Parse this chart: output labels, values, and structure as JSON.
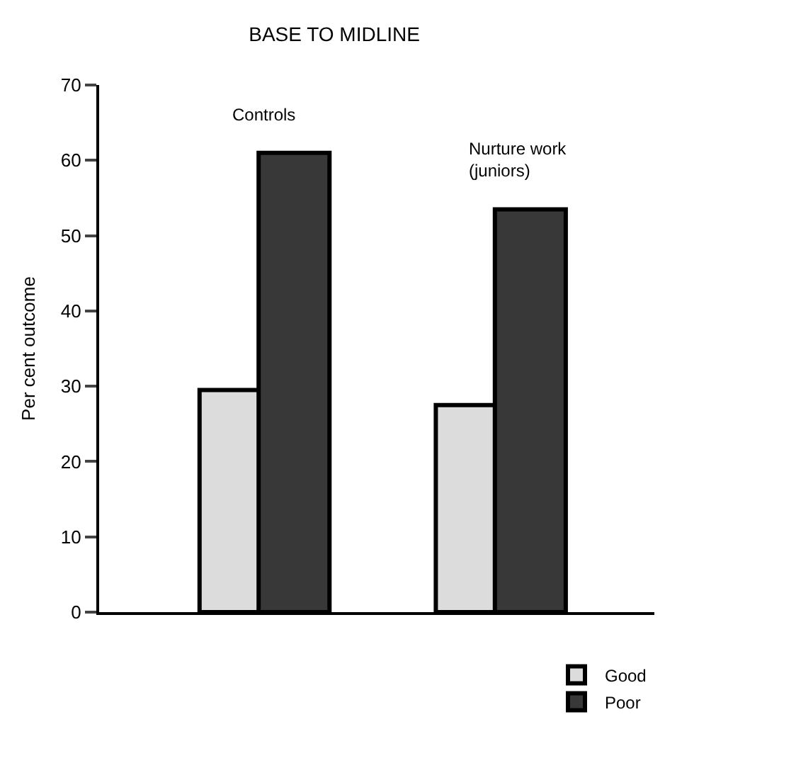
{
  "chart_data": {
    "type": "bar",
    "title": "BASE TO MIDLINE",
    "ylabel": "Per cent outcome",
    "categories": [
      "Controls",
      "Nurture work\n(juniors)"
    ],
    "series": [
      {
        "name": "Good",
        "color": "#dcdcdc",
        "values": [
          29.5,
          27.5
        ]
      },
      {
        "name": "Poor",
        "color": "#383838",
        "values": [
          61,
          53.5
        ]
      }
    ],
    "ylim": [
      0,
      70
    ],
    "yticks": [
      0,
      10,
      20,
      30,
      40,
      50,
      60,
      70
    ],
    "legend": "bottom right"
  }
}
